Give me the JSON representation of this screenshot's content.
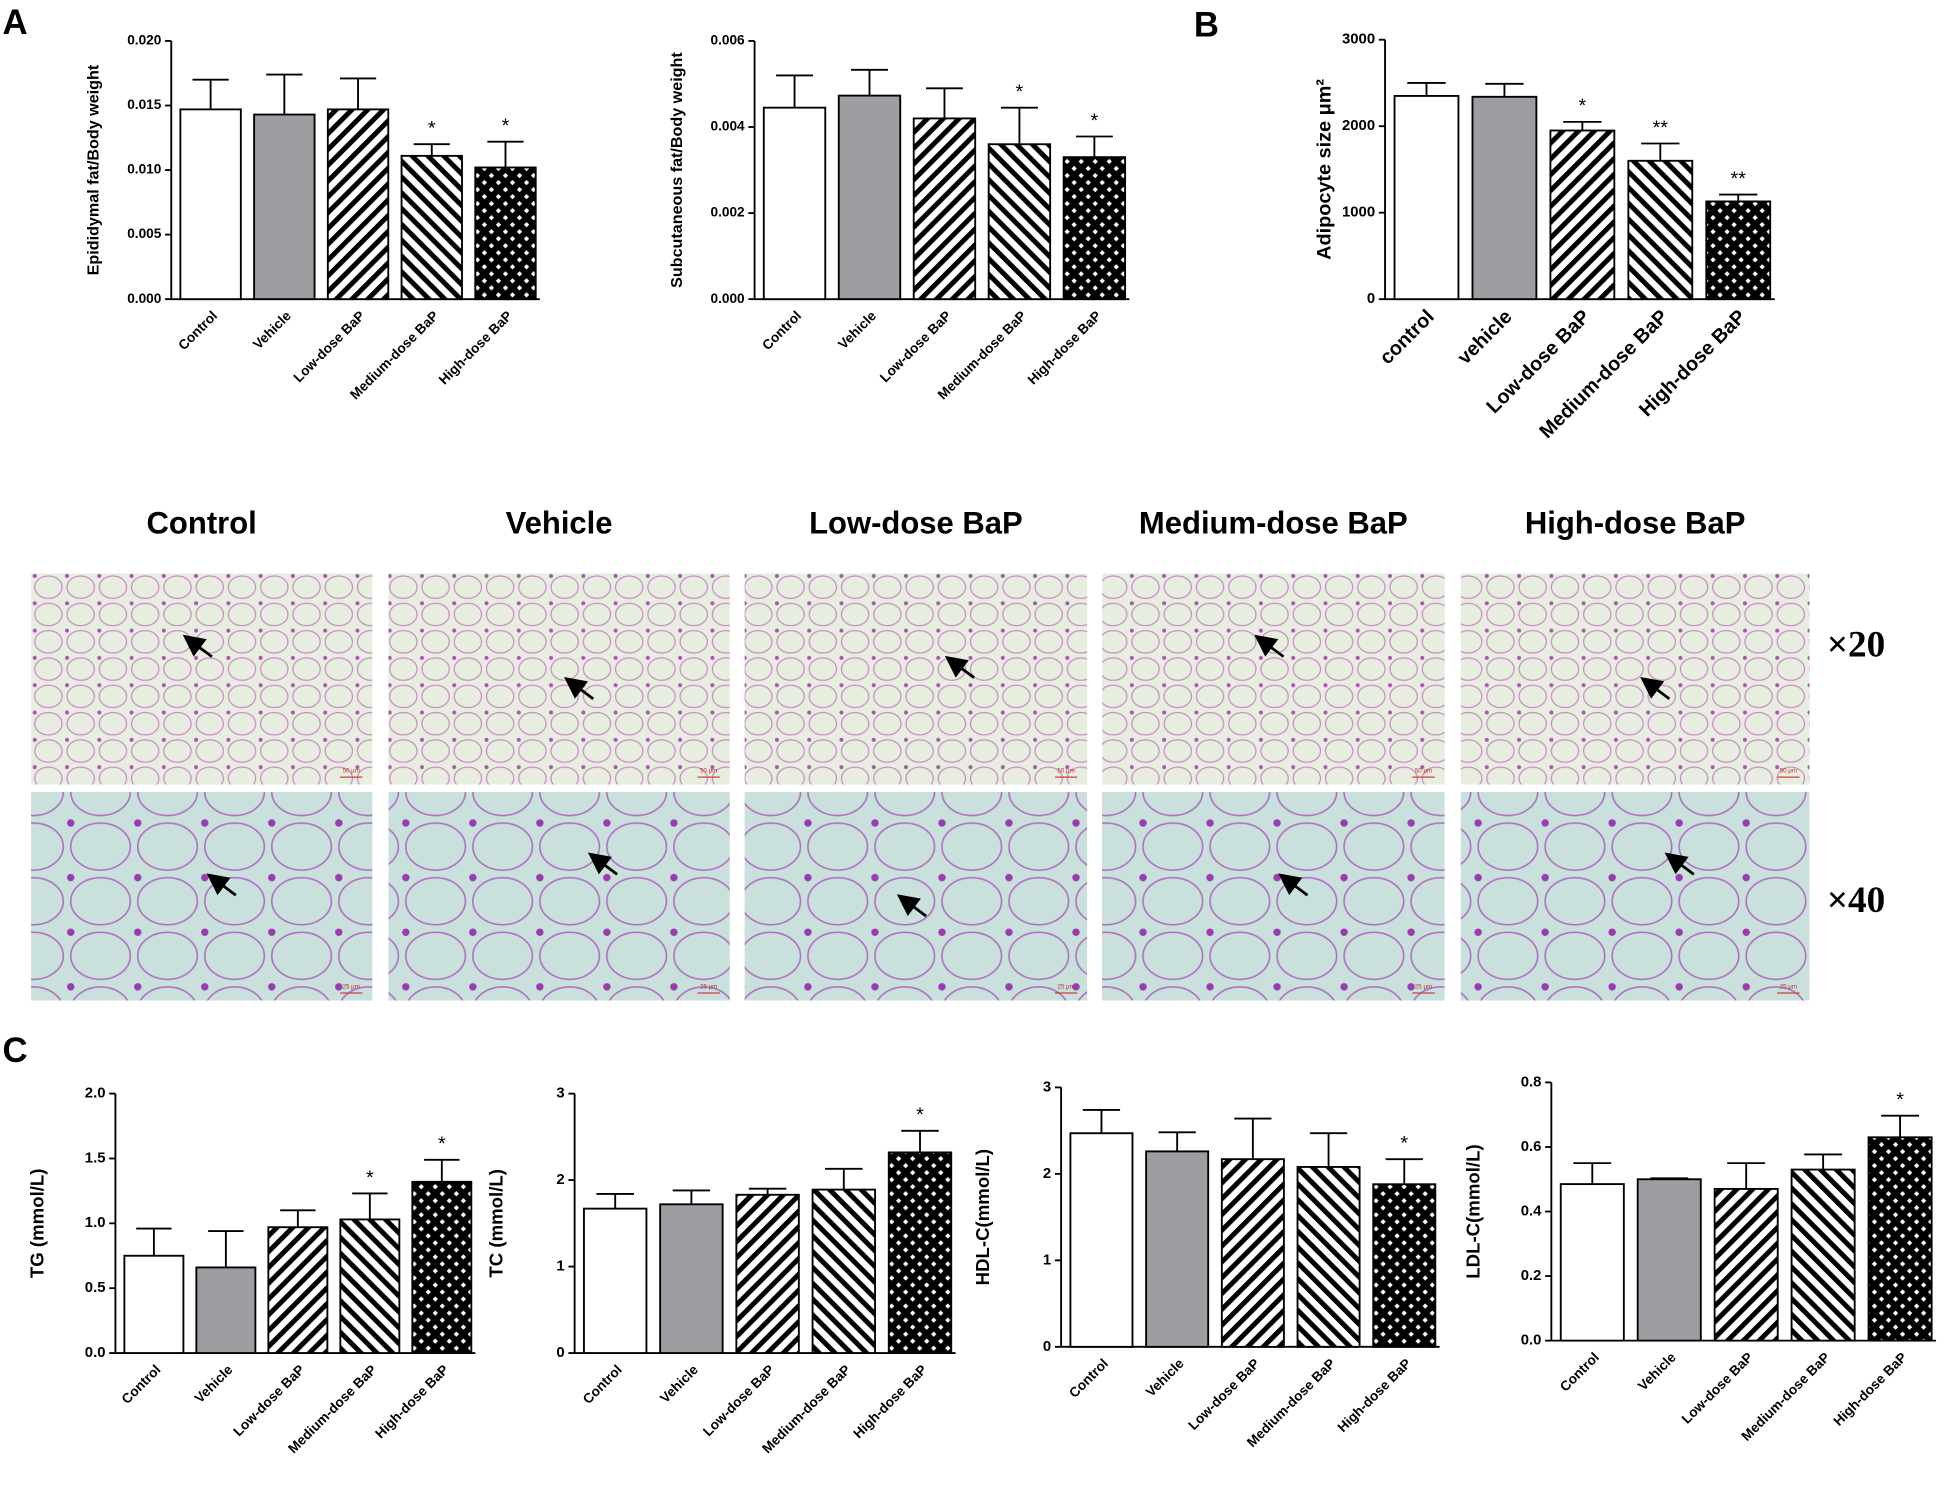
{
  "panels": [
    "A",
    "B",
    "C"
  ],
  "chart_data": [
    {
      "type": "bar",
      "y_label": "Epididymal fat/Body weight",
      "categories": [
        "Control",
        "Vehicle",
        "Low-dose BaP",
        "Medium-dose BaP",
        "High-dose BaP"
      ],
      "values": [
        0.0147,
        0.0143,
        0.0147,
        0.0111,
        0.0102
      ],
      "errors": [
        0.0023,
        0.0031,
        0.0024,
        0.0009,
        0.002
      ],
      "annotations": [
        null,
        null,
        null,
        "*",
        "*"
      ],
      "fills": [
        "white",
        "gray",
        "hatch-right",
        "hatch-left",
        "crosshatch"
      ],
      "ylim": [
        0,
        0.02
      ],
      "yticks": [
        {
          "value": 0,
          "label": "0.000"
        },
        {
          "value": 0.005,
          "label": "0.005"
        },
        {
          "value": 0.01,
          "label": "0.010"
        },
        {
          "value": 0.015,
          "label": "0.015"
        },
        {
          "value": 0.02,
          "label": "0.020"
        }
      ]
    },
    {
      "type": "bar",
      "y_label": "Subcutaneous fat/Body weight",
      "categories": [
        "Control",
        "Vehicle",
        "Low-dose BaP",
        "Medium-dose BaP",
        "High-dose BaP"
      ],
      "values": [
        0.00445,
        0.00473,
        0.0042,
        0.0036,
        0.0033
      ],
      "errors": [
        0.00075,
        0.0006,
        0.0007,
        0.00085,
        0.00048
      ],
      "annotations": [
        null,
        null,
        null,
        "*",
        "*"
      ],
      "fills": [
        "white",
        "gray",
        "hatch-right",
        "hatch-left",
        "crosshatch"
      ],
      "ylim": [
        0,
        0.006
      ],
      "yticks": [
        {
          "value": 0,
          "label": "0.000"
        },
        {
          "value": 0.002,
          "label": "0.002"
        },
        {
          "value": 0.004,
          "label": "0.004"
        },
        {
          "value": 0.006,
          "label": "0.006"
        }
      ]
    },
    {
      "type": "bar",
      "y_label": "Adipocyte size μm²",
      "categories": [
        "control",
        "vehicle",
        "Low-dose BaP",
        "Medium-dose BaP",
        "High-dose BaP"
      ],
      "values": [
        2350,
        2340,
        1950,
        1600,
        1130
      ],
      "errors": [
        150,
        150,
        100,
        200,
        80
      ],
      "annotations": [
        null,
        null,
        "*",
        "**",
        "**"
      ],
      "fills": [
        "white",
        "gray",
        "hatch-right",
        "hatch-left",
        "crosshatch"
      ],
      "ylim": [
        0,
        3000
      ],
      "yticks": [
        0,
        1000,
        2000,
        3000
      ]
    },
    {
      "type": "bar",
      "y_label": "TG (mmol/L)",
      "categories": [
        "Control",
        "Vehicle",
        "Low-dose BaP",
        "Medium-dose BaP",
        "High-dose BaP"
      ],
      "values": [
        0.75,
        0.66,
        0.97,
        1.03,
        1.32
      ],
      "errors": [
        0.21,
        0.28,
        0.13,
        0.2,
        0.17
      ],
      "annotations": [
        null,
        null,
        null,
        "*",
        "*"
      ],
      "fills": [
        "white",
        "gray",
        "hatch-right",
        "hatch-left",
        "crosshatch"
      ],
      "ylim": [
        0,
        2
      ],
      "yticks": [
        {
          "value": 0,
          "label": "0.0"
        },
        0.5,
        {
          "value": 1,
          "label": "1.0"
        },
        1.5,
        {
          "value": 2,
          "label": "2.0"
        }
      ]
    },
    {
      "type": "bar",
      "y_label": "TC (mmol/L)",
      "categories": [
        "Control",
        "Vehicle",
        "Low-dose BaP",
        "Medium-dose BaP",
        "High-dose BaP"
      ],
      "values": [
        1.67,
        1.72,
        1.83,
        1.89,
        2.32
      ],
      "errors": [
        0.17,
        0.16,
        0.07,
        0.24,
        0.25
      ],
      "annotations": [
        null,
        null,
        null,
        null,
        "*"
      ],
      "fills": [
        "white",
        "gray",
        "hatch-right",
        "hatch-left",
        "crosshatch"
      ],
      "ylim": [
        0,
        3
      ],
      "yticks": [
        0,
        1,
        2,
        3
      ]
    },
    {
      "type": "bar",
      "y_label": "HDL-C(mmol/L)",
      "categories": [
        "Control",
        "Vehicle",
        "Low-dose BaP",
        "Medium-dose BaP",
        "High-dose BaP"
      ],
      "values": [
        2.47,
        2.26,
        2.17,
        2.08,
        1.88
      ],
      "errors": [
        0.27,
        0.22,
        0.47,
        0.39,
        0.29
      ],
      "annotations": [
        null,
        null,
        null,
        null,
        "*"
      ],
      "fills": [
        "white",
        "gray",
        "hatch-right",
        "hatch-left",
        "crosshatch"
      ],
      "ylim": [
        0,
        3
      ],
      "yticks": [
        0,
        1,
        2,
        3
      ]
    },
    {
      "type": "bar",
      "y_label": "LDL-C(mmol/L)",
      "categories": [
        "Control",
        "Vehicle",
        "Low-dose BaP",
        "Medium-dose BaP",
        "High-dose BaP"
      ],
      "values": [
        0.485,
        0.5,
        0.47,
        0.53,
        0.63
      ],
      "errors": [
        0.065,
        0.003,
        0.08,
        0.047,
        0.067
      ],
      "annotations": [
        null,
        null,
        null,
        null,
        "*"
      ],
      "fills": [
        "white",
        "gray",
        "hatch-right",
        "hatch-left",
        "crosshatch"
      ],
      "ylim": [
        0,
        0.8
      ],
      "yticks": [
        {
          "value": 0,
          "label": "0.0"
        },
        0.2,
        0.4,
        0.6,
        0.8
      ]
    }
  ],
  "micrographs": {
    "columns": [
      "Control",
      "Vehicle",
      "Low-dose BaP",
      "Medium-dose BaP",
      "High-dose BaP"
    ],
    "magnifications": [
      "×20",
      "×40"
    ],
    "scale_bars": [
      "50 μm",
      "25 μm"
    ]
  }
}
